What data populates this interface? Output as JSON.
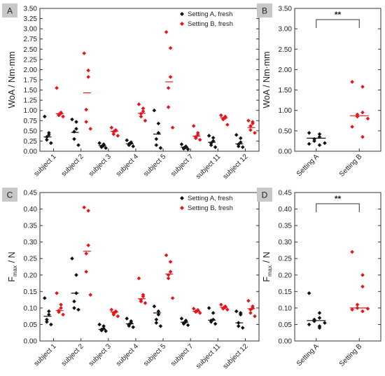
{
  "colors": {
    "setting_a": "#111111",
    "setting_b": "#e8141c",
    "panel_label_bg": "#c8c8c8",
    "axis": "#333333"
  },
  "chart_data": [
    {
      "id": "A",
      "type": "scatter",
      "panel_label": "A",
      "ylabel_main": "WoA / Nm·mm",
      "ylim": [
        0,
        3.5
      ],
      "yticks": [
        "0.00",
        "0.25",
        "0.50",
        "0.75",
        "1.00",
        "1.25",
        "1.50",
        "1.75",
        "2.00",
        "2.25",
        "2.50",
        "2.75",
        "3.00",
        "3.25",
        "3.50"
      ],
      "categories": [
        "subject 1",
        "subject 2",
        "subject 3",
        "subject 4",
        "subject 5",
        "subject 7",
        "subject 11",
        "subject 12"
      ],
      "legend": [
        "Setting A, fresh",
        "Setting B, fresh"
      ],
      "legend_position": "top-right",
      "series": [
        {
          "name": "Setting A, fresh",
          "color": "#111111",
          "points": [
            [
              0.85,
              0.45,
              0.4,
              0.35,
              0.28,
              0.2
            ],
            [
              0.78,
              0.72,
              0.55,
              0.48,
              0.3,
              0.15
            ],
            [
              0.2,
              0.17,
              0.14,
              0.12,
              0.1,
              0.08
            ],
            [
              0.27,
              0.22,
              0.2,
              0.18,
              0.15,
              0.12
            ],
            [
              1.0,
              0.68,
              0.45,
              0.3,
              0.15,
              0.08
            ],
            [
              0.17,
              0.12,
              0.1,
              0.08,
              0.06,
              0.05
            ],
            [
              0.38,
              0.33,
              0.25,
              0.2,
              0.15,
              0.1
            ],
            [
              0.4,
              0.32,
              0.22,
              0.17,
              0.12,
              0.1
            ]
          ],
          "medians": [
            0.35,
            0.46,
            0.14,
            0.18,
            0.42,
            0.1,
            0.22,
            0.18
          ]
        },
        {
          "name": "Setting B, fresh",
          "color": "#e8141c",
          "points": [
            [
              1.55,
              0.95,
              0.93,
              0.9,
              0.88,
              0.85
            ],
            [
              2.4,
              1.98,
              1.82,
              1.02,
              0.72,
              0.55
            ],
            [
              0.58,
              0.52,
              0.5,
              0.48,
              0.42,
              0.38
            ],
            [
              1.15,
              1.05,
              0.98,
              0.92,
              0.85,
              0.75
            ],
            [
              2.92,
              2.53,
              1.82,
              1.55,
              1.08,
              0.58
            ],
            [
              0.62,
              0.45,
              0.4,
              0.35,
              0.32,
              0.28
            ],
            [
              0.88,
              0.85,
              0.82,
              0.8,
              0.78,
              0.65
            ],
            [
              0.75,
              0.72,
              0.68,
              0.62,
              0.52,
              0.45
            ]
          ],
          "medians": [
            0.92,
            1.43,
            0.49,
            0.93,
            1.7,
            0.37,
            0.82,
            0.58
          ]
        }
      ]
    },
    {
      "id": "B",
      "type": "scatter",
      "panel_label": "B",
      "ylabel_main": "WoA / Nm·mm",
      "ylim": [
        0,
        3.5
      ],
      "yticks": [
        "0.00",
        "0.50",
        "1.00",
        "1.50",
        "2.00",
        "2.50",
        "3.00",
        "3.50"
      ],
      "categories": [
        "Setting A",
        "Setting B"
      ],
      "significance": "**",
      "series": [
        {
          "name": "Setting A",
          "color": "#111111",
          "points": [
            [
              0.45,
              0.42,
              0.35,
              0.3,
              0.25,
              0.2,
              0.18,
              0.15
            ]
          ],
          "medians": [
            0.32
          ]
        },
        {
          "name": "Setting B",
          "color": "#e8141c",
          "points": [
            [
              1.7,
              1.58,
              0.95,
              0.9,
              0.85,
              0.8,
              0.6,
              0.35
            ]
          ],
          "medians": [
            0.87
          ]
        }
      ]
    },
    {
      "id": "C",
      "type": "scatter",
      "panel_label": "C",
      "ylabel_main": "F",
      "ylabel_sub": "max",
      "ylabel_tail": " / N",
      "ylim": [
        0,
        0.45
      ],
      "yticks": [
        "0.00",
        "0.05",
        "0.10",
        "0.15",
        "0.20",
        "0.25",
        "0.30",
        "0.35",
        "0.40",
        "0.45"
      ],
      "categories": [
        "subject 1",
        "subject 2",
        "subject 3",
        "subject 4",
        "subject 5",
        "subject 7",
        "subject 11",
        "subject 12"
      ],
      "legend": [
        "Setting A, fresh",
        "Setting B, fresh"
      ],
      "legend_position": "top-right",
      "series": [
        {
          "name": "Setting A, fresh",
          "color": "#111111",
          "points": [
            [
              0.13,
              0.09,
              0.08,
              0.065,
              0.058,
              0.05
            ],
            [
              0.25,
              0.2,
              0.145,
              0.12,
              0.1,
              0.095
            ],
            [
              0.05,
              0.045,
              0.038,
              0.035,
              0.032,
              0.03
            ],
            [
              0.068,
              0.06,
              0.055,
              0.05,
              0.046,
              0.042
            ],
            [
              0.105,
              0.09,
              0.08,
              0.065,
              0.055,
              0.045
            ],
            [
              0.068,
              0.062,
              0.058,
              0.055,
              0.052,
              0.048
            ],
            [
              0.1,
              0.085,
              0.065,
              0.062,
              0.058,
              0.052
            ],
            [
              0.09,
              0.085,
              0.08,
              0.055,
              0.045,
              0.04
            ]
          ],
          "medians": [
            0.075,
            0.145,
            0.035,
            0.052,
            0.085,
            0.057,
            0.063,
            0.055
          ]
        },
        {
          "name": "Setting B, fresh",
          "color": "#e8141c",
          "points": [
            [
              0.145,
              0.11,
              0.1,
              0.092,
              0.088,
              0.08
            ],
            [
              0.405,
              0.395,
              0.29,
              0.265,
              0.21,
              0.14
            ],
            [
              0.095,
              0.09,
              0.088,
              0.085,
              0.08,
              0.075
            ],
            [
              0.19,
              0.14,
              0.135,
              0.125,
              0.12,
              0.115
            ],
            [
              0.26,
              0.24,
              0.21,
              0.2,
              0.19,
              0.13
            ],
            [
              0.098,
              0.094,
              0.092,
              0.09,
              0.088,
              0.085
            ],
            [
              0.11,
              0.105,
              0.102,
              0.1,
              0.098,
              0.095
            ],
            [
              0.122,
              0.105,
              0.1,
              0.095,
              0.085,
              0.075
            ]
          ],
          "medians": [
            0.092,
            0.272,
            0.088,
            0.128,
            0.203,
            0.09,
            0.102,
            0.098
          ]
        }
      ]
    },
    {
      "id": "D",
      "type": "scatter",
      "panel_label": "D",
      "ylabel_main": "F",
      "ylabel_sub": "max",
      "ylabel_tail": " / N",
      "ylim": [
        0,
        0.45
      ],
      "yticks": [
        "0.00",
        "0.05",
        "0.10",
        "0.15",
        "0.20",
        "0.25",
        "0.30",
        "0.35",
        "0.40",
        "0.45"
      ],
      "categories": [
        "Setting A",
        "Setting B"
      ],
      "significance": "**",
      "series": [
        {
          "name": "Setting A",
          "color": "#111111",
          "points": [
            [
              0.145,
              0.085,
              0.07,
              0.065,
              0.06,
              0.055,
              0.05,
              0.045,
              0.04
            ]
          ],
          "medians": [
            0.062
          ]
        },
        {
          "name": "Setting B",
          "color": "#e8141c",
          "points": [
            [
              0.27,
              0.2,
              0.165,
              0.11,
              0.1,
              0.098,
              0.095,
              0.09
            ]
          ],
          "medians": [
            0.1
          ]
        }
      ]
    }
  ]
}
